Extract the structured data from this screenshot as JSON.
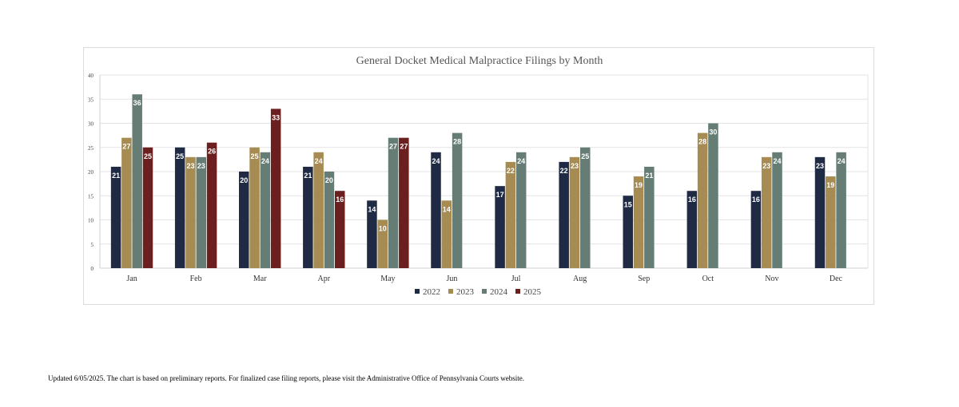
{
  "chart_data": {
    "type": "bar",
    "title": "General Docket Medical Malpractice Filings by Month",
    "xlabel": "",
    "ylabel": "",
    "ylim": [
      0,
      40
    ],
    "yticks": [
      "0",
      "5",
      "10",
      "15",
      "20",
      "25",
      "30",
      "35",
      "40"
    ],
    "grid": true,
    "legend_position": "bottom",
    "categories": [
      "Jan",
      "Feb",
      "Mar",
      "Apr",
      "May",
      "Jun",
      "Jul",
      "Aug",
      "Sep",
      "Oct",
      "Nov",
      "Dec"
    ],
    "series": [
      {
        "name": "2022",
        "color": "#1f2a44",
        "values": [
          21,
          25,
          20,
          21,
          14,
          24,
          17,
          22,
          15,
          16,
          16,
          23
        ]
      },
      {
        "name": "2023",
        "color": "#a68b52",
        "values": [
          27,
          23,
          25,
          24,
          10,
          14,
          22,
          23,
          19,
          28,
          23,
          19
        ]
      },
      {
        "name": "2024",
        "color": "#657d74",
        "values": [
          36,
          23,
          24,
          20,
          27,
          28,
          24,
          25,
          21,
          30,
          24,
          24
        ]
      },
      {
        "name": "2025",
        "color": "#6b1f1f",
        "values": [
          25,
          26,
          33,
          16,
          27,
          null,
          null,
          null,
          null,
          null,
          null,
          null
        ]
      }
    ]
  },
  "footnote": "Updated 6/05/2025.  The chart is based on preliminary reports.  For finalized case filing reports, please visit the Administrative Office of Pennsylvania Courts website."
}
